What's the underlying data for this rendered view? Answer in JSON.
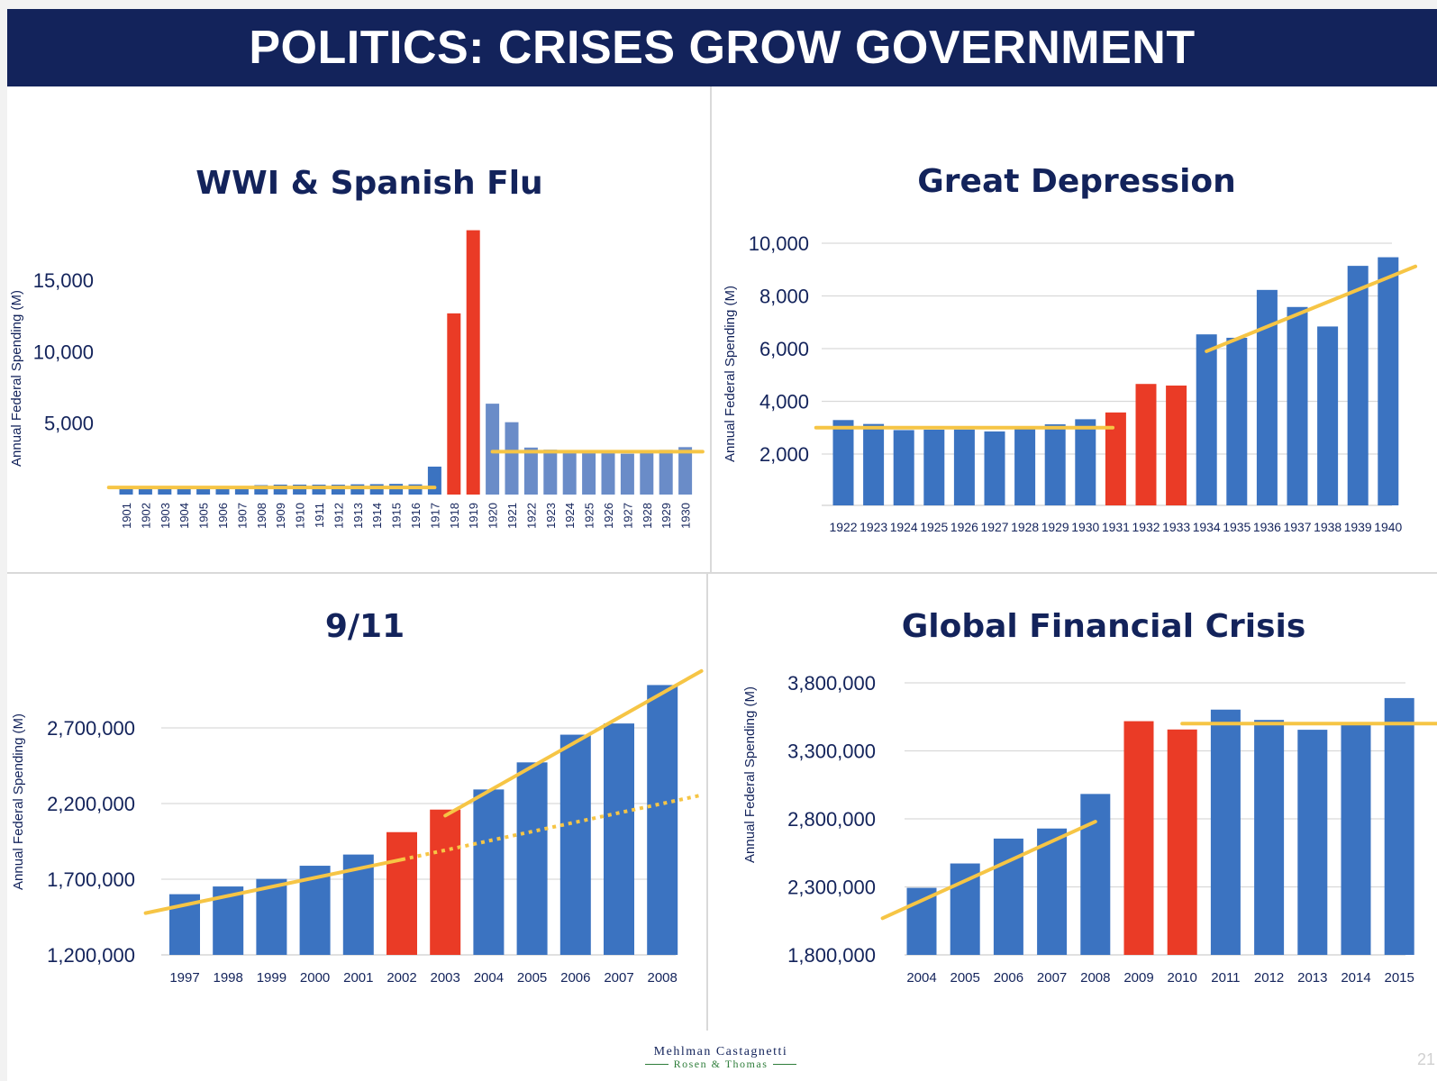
{
  "slide": {
    "title": "POLITICS: CRISES GROW GOVERNMENT",
    "page_number": "21"
  },
  "logo": {
    "line1": "Mehlman Castagnetti",
    "line2": "Rosen & Thomas"
  },
  "colors": {
    "banner": "#13235b",
    "title_text": "#13235b",
    "bar_blue": "#3b73c1",
    "bar_blue_muted": "#6a8cc8",
    "bar_red": "#ea3b26",
    "trend_yellow": "#f6c545",
    "gridline": "#d9d9d9",
    "axis_text": "#13235b"
  },
  "chart_data": [
    {
      "type": "bar",
      "title": "WWI & Spanish Flu",
      "ylabel": "Annual Federal Spending (M)",
      "ylim": [
        0,
        20000
      ],
      "yticks": [
        5000,
        10000,
        15000
      ],
      "ytick_labels": [
        "5,000",
        "10,000",
        "15,000"
      ],
      "gridlines": false,
      "xtick_rotation": "vertical",
      "categories": [
        "1901",
        "1902",
        "1903",
        "1904",
        "1905",
        "1906",
        "1907",
        "1908",
        "1909",
        "1910",
        "1911",
        "1912",
        "1913",
        "1914",
        "1915",
        "1916",
        "1917",
        "1918",
        "1919",
        "1920",
        "1921",
        "1922",
        "1923",
        "1924",
        "1925",
        "1926",
        "1927",
        "1928",
        "1929",
        "1930"
      ],
      "values": [
        525,
        485,
        517,
        584,
        567,
        570,
        579,
        659,
        694,
        694,
        691,
        690,
        715,
        726,
        746,
        713,
        1954,
        12677,
        18493,
        6358,
        5062,
        3289,
        3140,
        2908,
        2924,
        2930,
        2857,
        2961,
        3127,
        3320
      ],
      "bar_colors": [
        "blue",
        "blue",
        "blue",
        "blue",
        "blue",
        "blue",
        "blue",
        "blue",
        "blue",
        "blue",
        "blue",
        "blue",
        "blue",
        "blue",
        "blue",
        "blue",
        "blue",
        "red",
        "red",
        "muted",
        "muted",
        "muted",
        "muted",
        "muted",
        "muted",
        "muted",
        "muted",
        "muted",
        "muted",
        "muted"
      ],
      "trend_lines": [
        {
          "from": [
            "1901",
            500
          ],
          "to": [
            "1917",
            500
          ],
          "style": "solid",
          "extend": "left"
        },
        {
          "from": [
            "1920",
            3000
          ],
          "to": [
            "1930",
            3000
          ],
          "style": "solid",
          "extend": "right"
        }
      ]
    },
    {
      "type": "bar",
      "title": "Great Depression",
      "ylabel": "Annual Federal Spending (M)",
      "ylim": [
        0,
        10000
      ],
      "yticks": [
        2000,
        4000,
        6000,
        8000,
        10000
      ],
      "ytick_labels": [
        "2,000",
        "4,000",
        "6,000",
        "8,000",
        "10,000"
      ],
      "gridlines": true,
      "categories": [
        "1922",
        "1923",
        "1924",
        "1925",
        "1926",
        "1927",
        "1928",
        "1929",
        "1930",
        "1931",
        "1932",
        "1933",
        "1934",
        "1935",
        "1936",
        "1937",
        "1938",
        "1939",
        "1940"
      ],
      "values": [
        3289,
        3140,
        2908,
        2924,
        2930,
        2857,
        2961,
        3127,
        3320,
        3577,
        4659,
        4598,
        6541,
        6412,
        8228,
        7580,
        6840,
        9141,
        9468
      ],
      "bar_colors": [
        "blue",
        "blue",
        "blue",
        "blue",
        "blue",
        "blue",
        "blue",
        "blue",
        "blue",
        "red",
        "red",
        "red",
        "blue",
        "blue",
        "blue",
        "blue",
        "blue",
        "blue",
        "blue"
      ],
      "trend_lines": [
        {
          "from": [
            "1922",
            3000
          ],
          "to": [
            "1930",
            3000
          ],
          "style": "solid",
          "extend": "both-short"
        },
        {
          "from": [
            "1934",
            5900
          ],
          "to": [
            "1940",
            8700
          ],
          "style": "solid",
          "extend": "right"
        }
      ]
    },
    {
      "type": "bar",
      "title": "9/11",
      "ylabel": "Annual Federal Spending (M)",
      "ylim": [
        1200000,
        3000000
      ],
      "yticks": [
        1200000,
        1700000,
        2200000,
        2700000
      ],
      "ytick_labels": [
        "1,200,000",
        "1,700,000",
        "2,200,000",
        "2,700,000"
      ],
      "gridlines": true,
      "categories": [
        "1997",
        "1998",
        "1999",
        "2000",
        "2001",
        "2002",
        "2003",
        "2004",
        "2005",
        "2006",
        "2007",
        "2008"
      ],
      "values": [
        1601000,
        1652000,
        1702000,
        1789000,
        1863000,
        2011000,
        2160000,
        2293000,
        2472000,
        2655000,
        2729000,
        2983000
      ],
      "bar_colors": [
        "blue",
        "blue",
        "blue",
        "blue",
        "blue",
        "red",
        "red",
        "blue",
        "blue",
        "blue",
        "blue",
        "blue"
      ],
      "trend_lines": [
        {
          "from": [
            "1997",
            1530000
          ],
          "to": [
            "2002",
            1830000
          ],
          "style": "solid",
          "extend": "left"
        },
        {
          "from": [
            "2002",
            1830000
          ],
          "to": [
            "2008",
            2200000
          ],
          "style": "dotted",
          "extend": "right"
        },
        {
          "from": [
            "2003",
            2120000
          ],
          "to": [
            "2008",
            2930000
          ],
          "style": "solid",
          "extend": "right"
        }
      ]
    },
    {
      "type": "bar",
      "title": "Global Financial Crisis",
      "ylabel": "Annual Federal Spending (M)",
      "ylim": [
        1800000,
        3800000
      ],
      "yticks": [
        1800000,
        2300000,
        2800000,
        3300000,
        3800000
      ],
      "ytick_labels": [
        "1,800,000",
        "2,300,000",
        "2,800,000",
        "3,300,000",
        "3,800,000"
      ],
      "gridlines": true,
      "categories": [
        "2004",
        "2005",
        "2006",
        "2007",
        "2008",
        "2009",
        "2010",
        "2011",
        "2012",
        "2013",
        "2014",
        "2015"
      ],
      "values": [
        2293000,
        2472000,
        2655000,
        2729000,
        2983000,
        3518000,
        3457000,
        3603000,
        3527000,
        3455000,
        3506000,
        3688000
      ],
      "bar_colors": [
        "blue",
        "blue",
        "blue",
        "blue",
        "blue",
        "red",
        "red",
        "blue",
        "blue",
        "blue",
        "blue",
        "blue"
      ],
      "trend_lines": [
        {
          "from": [
            "2004",
            2200000
          ],
          "to": [
            "2008",
            2780000
          ],
          "style": "solid",
          "extend": "left"
        },
        {
          "from": [
            "2010",
            3500000
          ],
          "to": [
            "2015",
            3500000
          ],
          "style": "solid",
          "extend": "right"
        }
      ]
    }
  ]
}
